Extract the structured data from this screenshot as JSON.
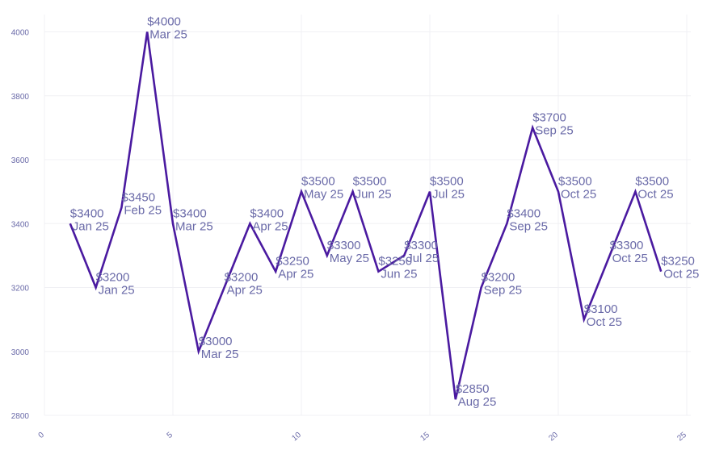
{
  "chart_data": {
    "type": "line",
    "title": "",
    "xlabel": "",
    "ylabel": "",
    "xlim": [
      0,
      25
    ],
    "ylim": [
      2800,
      4050
    ],
    "xticks": [
      "0",
      "5",
      "10",
      "15",
      "20",
      "25"
    ],
    "yticks": [
      "2800",
      "3000",
      "3200",
      "3400",
      "3600",
      "3800",
      "4000"
    ],
    "grid": true,
    "legend": "none",
    "color": "#4a1aa0",
    "series": [
      {
        "points": [
          {
            "x": 1,
            "y": 3400,
            "value": "$3400",
            "label": "Jan 25"
          },
          {
            "x": 2,
            "y": 3200,
            "value": "$3200",
            "label": "Jan 25"
          },
          {
            "x": 3,
            "y": 3450,
            "value": "$3450",
            "label": "Feb 25"
          },
          {
            "x": 4,
            "y": 4000,
            "value": "$4000",
            "label": "Mar 25"
          },
          {
            "x": 5,
            "y": 3400,
            "value": "$3400",
            "label": "Mar 25"
          },
          {
            "x": 6,
            "y": 3000,
            "value": "$3000",
            "label": "Mar 25"
          },
          {
            "x": 7,
            "y": 3200,
            "value": "$3200",
            "label": "Apr 25"
          },
          {
            "x": 8,
            "y": 3400,
            "value": "$3400",
            "label": "Apr 25"
          },
          {
            "x": 9,
            "y": 3250,
            "value": "$3250",
            "label": "Apr 25"
          },
          {
            "x": 10,
            "y": 3500,
            "value": "$3500",
            "label": "May 25"
          },
          {
            "x": 11,
            "y": 3300,
            "value": "$3300",
            "label": "May 25"
          },
          {
            "x": 12,
            "y": 3500,
            "value": "$3500",
            "label": "Jun 25"
          },
          {
            "x": 13,
            "y": 3250,
            "value": "$3250",
            "label": "Jun 25"
          },
          {
            "x": 14,
            "y": 3300,
            "value": "$3300",
            "label": "Jul 25"
          },
          {
            "x": 15,
            "y": 3500,
            "value": "$3500",
            "label": "Jul 25"
          },
          {
            "x": 16,
            "y": 2850,
            "value": "$2850",
            "label": "Aug 25"
          },
          {
            "x": 17,
            "y": 3200,
            "value": "$3200",
            "label": "Sep 25"
          },
          {
            "x": 18,
            "y": 3400,
            "value": "$3400",
            "label": "Sep 25"
          },
          {
            "x": 19,
            "y": 3700,
            "value": "$3700",
            "label": "Sep 25"
          },
          {
            "x": 20,
            "y": 3500,
            "value": "$3500",
            "label": "Oct 25"
          },
          {
            "x": 21,
            "y": 3100,
            "value": "$3100",
            "label": "Oct 25"
          },
          {
            "x": 22,
            "y": 3300,
            "value": "$3300",
            "label": "Oct 25"
          },
          {
            "x": 23,
            "y": 3500,
            "value": "$3500",
            "label": "Oct 25"
          },
          {
            "x": 24,
            "y": 3250,
            "value": "$3250",
            "label": "Oct 25"
          }
        ]
      }
    ]
  }
}
